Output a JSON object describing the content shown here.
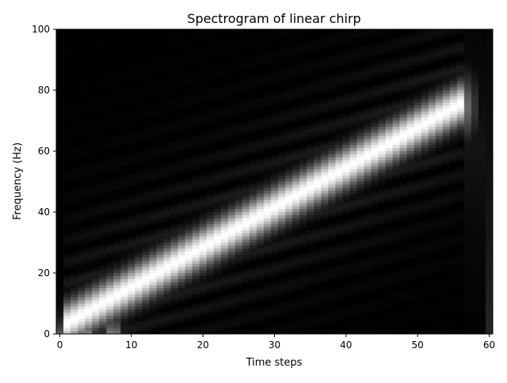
{
  "chart_data": {
    "type": "heatmap",
    "title": "Spectrogram of linear chirp",
    "xlabel": "Time steps",
    "ylabel": "Frequency (Hz)",
    "xlim": [
      -0.5,
      60.5
    ],
    "ylim": [
      0,
      100
    ],
    "x_ticks": [
      0,
      10,
      20,
      30,
      40,
      50,
      60
    ],
    "y_ticks": [
      0,
      20,
      40,
      60,
      80,
      100
    ],
    "colormap": "gray",
    "time_steps": 61,
    "frequency_bins": 100,
    "ridge": {
      "start_time": 1,
      "start_freq": 3,
      "end_time": 56,
      "end_freq": 75,
      "fade_out_time": 57,
      "fade_out_freq": 82
    },
    "grid": false,
    "legend": "none"
  },
  "colors": {
    "background": "#ffffff",
    "axis": "#000000",
    "map_low": "#000000",
    "map_high": "#ffffff"
  }
}
